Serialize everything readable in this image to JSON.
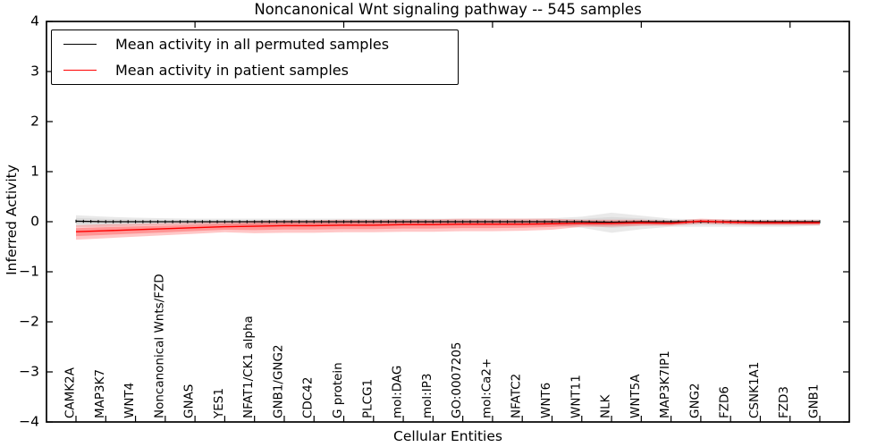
{
  "title": "Noncanonical Wnt signaling pathway -- 545 samples",
  "axes": {
    "ylabel": "Inferred Activity",
    "xlabel": "Cellular Entities",
    "yticks": [
      {
        "label": "4",
        "value": 4
      },
      {
        "label": "3",
        "value": 3
      },
      {
        "label": "2",
        "value": 2
      },
      {
        "label": "1",
        "value": 1
      },
      {
        "label": "0",
        "value": 0
      },
      {
        "label": "−1",
        "value": -1
      },
      {
        "label": "−2",
        "value": -2
      },
      {
        "label": "−3",
        "value": -3
      },
      {
        "label": "−4",
        "value": -4
      }
    ]
  },
  "legend": {
    "entries": [
      {
        "label": "Mean activity in all permuted samples",
        "color": "#000000"
      },
      {
        "label": "Mean activity in patient samples",
        "color": "#ff0000"
      }
    ]
  },
  "colors": {
    "permuted_line": "#000000",
    "patient_line": "#ff0000",
    "permuted_band": "#999999",
    "patient_band": "#ff0000",
    "spine": "#000000",
    "background": "#ffffff"
  },
  "chart_data": {
    "type": "line",
    "title": "Noncanonical Wnt signaling pathway -- 545 samples",
    "xlabel": "Cellular Entities",
    "ylabel": "Inferred Activity",
    "ylim": [
      -4,
      4
    ],
    "grid": false,
    "legend_position": "upper left",
    "categories": [
      "CAMK2A",
      "MAP3K7",
      "WNT4",
      "Noncanonical Wnts/FZD",
      "GNAS",
      "YES1",
      "NFAT1/CK1 alpha",
      "GNB1/GNG2",
      "CDC42",
      "G protein",
      "PLCG1",
      "mol:DAG",
      "mol:IP3",
      "GO:0007205",
      "mol:Ca2+",
      "NFATC2",
      "WNT6",
      "WNT11",
      "NLK",
      "WNT5A",
      "MAP3K7IP1",
      "GNG2",
      "FZD6",
      "CSNK1A1",
      "FZD3",
      "GNB1"
    ],
    "top_axis_ticks_at_category_numbers": [
      5,
      10,
      15,
      20,
      25
    ],
    "series": [
      {
        "name": "Mean activity in all permuted samples",
        "color": "#000000",
        "band_color": "#999999",
        "values": [
          0.01,
          0,
          0,
          0,
          0,
          0,
          0,
          0,
          0,
          0,
          0,
          0,
          0,
          0,
          0,
          0,
          0,
          0,
          -0.01,
          0,
          0,
          0,
          0,
          0,
          0,
          0
        ],
        "band_upper": [
          0.13,
          0.1,
          0.08,
          0.07,
          0.06,
          0.06,
          0.06,
          0.06,
          0.06,
          0.06,
          0.06,
          0.06,
          0.06,
          0.06,
          0.06,
          0.06,
          0.07,
          0.1,
          0.18,
          0.12,
          0.06,
          0.05,
          0.05,
          0.05,
          0.05,
          0.05
        ],
        "band_lower": [
          -0.1,
          -0.1,
          -0.08,
          -0.07,
          -0.07,
          -0.07,
          -0.07,
          -0.07,
          -0.07,
          -0.07,
          -0.07,
          -0.07,
          -0.07,
          -0.07,
          -0.07,
          -0.07,
          -0.08,
          -0.12,
          -0.22,
          -0.15,
          -0.1,
          -0.1,
          -0.1,
          -0.1,
          -0.1,
          -0.08
        ]
      },
      {
        "name": "Mean activity in patient samples",
        "color": "#ff0000",
        "band_color": "#ff0000",
        "values": [
          -0.2,
          -0.18,
          -0.16,
          -0.14,
          -0.12,
          -0.1,
          -0.09,
          -0.08,
          -0.08,
          -0.07,
          -0.07,
          -0.06,
          -0.06,
          -0.05,
          -0.05,
          -0.05,
          -0.04,
          -0.03,
          -0.03,
          -0.02,
          -0.03,
          0.01,
          -0.01,
          -0.02,
          -0.02,
          -0.02
        ],
        "band_upper": [
          -0.07,
          -0.05,
          -0.04,
          -0.03,
          -0.02,
          0.0,
          0.02,
          0.03,
          0.03,
          0.04,
          0.04,
          0.05,
          0.05,
          0.06,
          0.06,
          0.06,
          0.06,
          0.04,
          0.04,
          0.04,
          0.02,
          0.06,
          0.04,
          0.03,
          0.03,
          0.03
        ],
        "band_lower": [
          -0.36,
          -0.33,
          -0.3,
          -0.27,
          -0.24,
          -0.21,
          -0.23,
          -0.22,
          -0.22,
          -0.21,
          -0.21,
          -0.2,
          -0.2,
          -0.19,
          -0.19,
          -0.18,
          -0.16,
          -0.1,
          -0.1,
          -0.08,
          -0.08,
          -0.04,
          -0.06,
          -0.07,
          -0.07,
          -0.07
        ]
      }
    ]
  }
}
